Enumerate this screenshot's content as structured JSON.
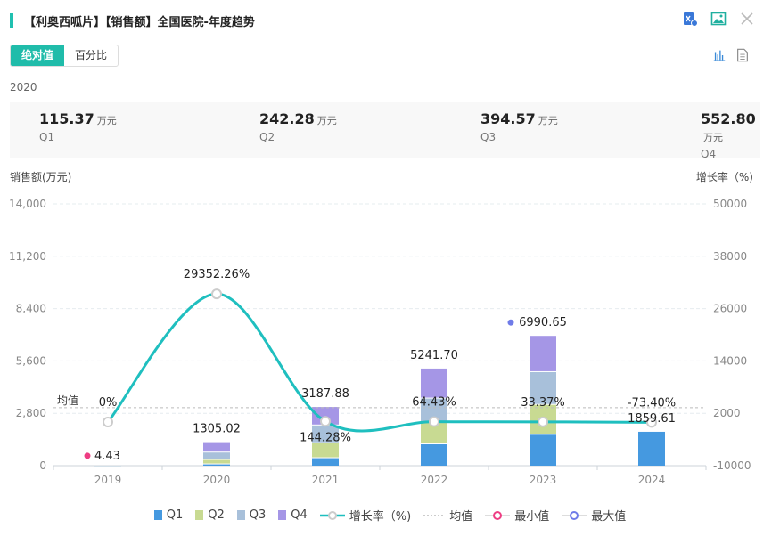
{
  "header": {
    "title": "【利奥西呱片】【销售额】全国医院-年度趋势"
  },
  "toggle": {
    "absolute": "绝对值",
    "percent": "百分比"
  },
  "summary": {
    "year": "2020",
    "unit": "万元",
    "items": [
      {
        "value": "115.37",
        "label": "Q1"
      },
      {
        "value": "242.28",
        "label": "Q2"
      },
      {
        "value": "394.57",
        "label": "Q3"
      },
      {
        "value": "552.80",
        "label": "Q4"
      }
    ]
  },
  "colors": {
    "Q1": "#4599e0",
    "Q2": "#c8da92",
    "Q3": "#a8c0da",
    "Q4": "#a596e6",
    "line": "#1fbfbf",
    "min": "#ee3d83",
    "max": "#6f7be8",
    "accent": "#20bcaa"
  },
  "chart_data": {
    "type": "bar",
    "ylabel": "销售额(万元)",
    "y2label": "增长率（%)",
    "categories": [
      "2019",
      "2020",
      "2021",
      "2022",
      "2023",
      "2024"
    ],
    "ylim": [
      0,
      14000
    ],
    "yticks": [
      "0",
      "2,800",
      "5,600",
      "8,400",
      "11,200",
      "14,000"
    ],
    "y2lim": [
      -10000,
      50000
    ],
    "y2ticks": [
      "-10000",
      "2000",
      "14000",
      "26000",
      "38000",
      "50000"
    ],
    "series": [
      {
        "name": "Q1",
        "values": [
          4.43,
          115.37,
          450,
          1190,
          1700,
          1859.61
        ]
      },
      {
        "name": "Q2",
        "values": [
          0,
          242.28,
          800,
          1150,
          1600,
          0
        ]
      },
      {
        "name": "Q3",
        "values": [
          0,
          394.57,
          950,
          1300,
          1750,
          0
        ]
      },
      {
        "name": "Q4",
        "values": [
          0,
          552.8,
          987.88,
          1601.7,
          1940.65,
          0
        ]
      }
    ],
    "totals": [
      "4.43",
      "1305.02",
      "3187.88",
      "5241.70",
      "6990.65",
      "1859.61"
    ],
    "growth": {
      "name": "增长率（%)",
      "values": [
        0,
        29352.26,
        144.28,
        64.43,
        33.37,
        -73.4
      ],
      "labels": [
        "0%",
        "29352.26%",
        "144.28%",
        "64.43%",
        "33.37%",
        "-73.40%"
      ]
    },
    "average": {
      "name": "均值",
      "value": 3098.22,
      "label": "均值"
    },
    "min": {
      "name": "最小值",
      "index": 0
    },
    "max": {
      "name": "最大值",
      "index": 4
    },
    "legend_position": "bottom"
  }
}
